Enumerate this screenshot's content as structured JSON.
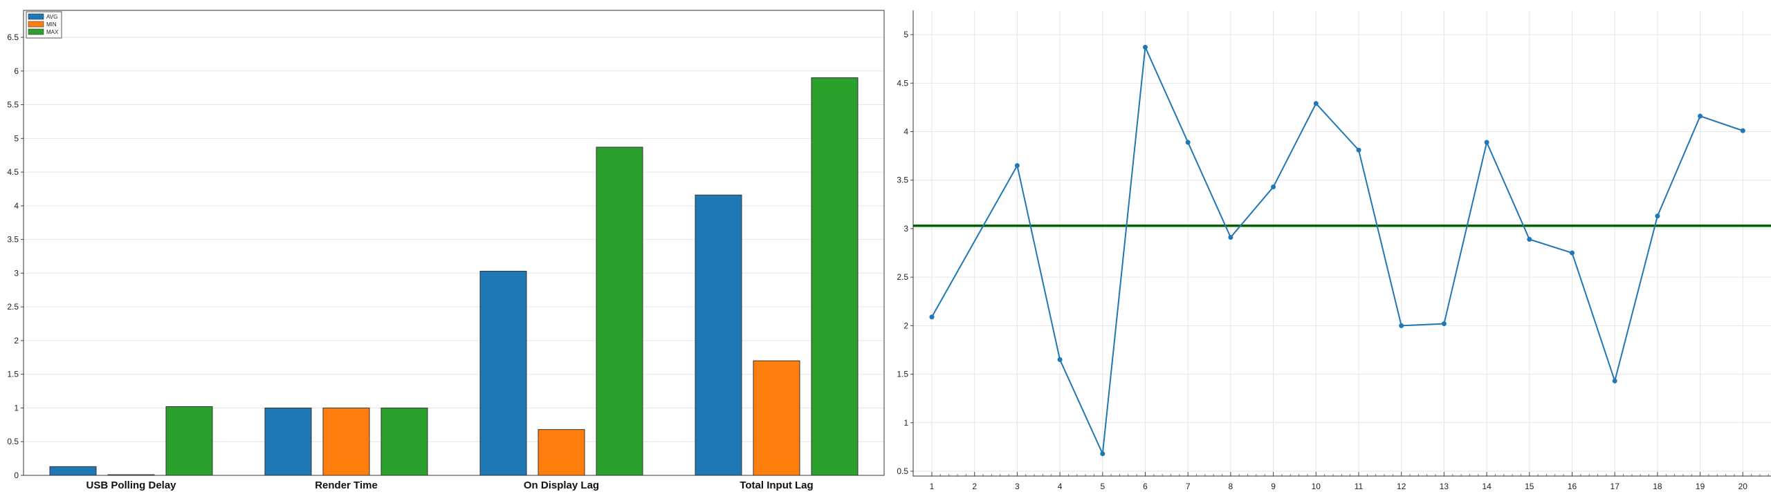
{
  "colors": {
    "avg": "#1f77b4",
    "min": "#ff7f0e",
    "max": "#2ca02c",
    "line": "#1f77b4",
    "avg_line": "#006400",
    "grid": "#e6e6e6"
  },
  "chart_data": [
    {
      "type": "bar",
      "title": "",
      "xlabel": "",
      "ylabel": "",
      "ylim": [
        0,
        6.9
      ],
      "yticks": [
        "0",
        "0.5",
        "1",
        "1.5",
        "2",
        "2.5",
        "3",
        "3.5",
        "4",
        "4.5",
        "5",
        "5.5",
        "6",
        "6.5"
      ],
      "grid": true,
      "legend_position": "top-left",
      "categories": [
        "USB Polling Delay",
        "Render Time",
        "On Display Lag",
        "Total Input Lag"
      ],
      "series": [
        {
          "name": "AVG",
          "color_key": "avg",
          "values": [
            0.13,
            1.0,
            3.03,
            4.16
          ]
        },
        {
          "name": "MIN",
          "color_key": "min",
          "values": [
            0.01,
            1.0,
            0.68,
            1.7
          ]
        },
        {
          "name": "MAX",
          "color_key": "max",
          "values": [
            1.02,
            1.0,
            4.87,
            5.9
          ]
        }
      ]
    },
    {
      "type": "line",
      "title": "",
      "xlabel": "",
      "ylabel": "",
      "ylim": [
        0.45,
        5.25
      ],
      "yticks": [
        "0.5",
        "1",
        "1.5",
        "2",
        "2.5",
        "3",
        "3.5",
        "4",
        "4.5",
        "5"
      ],
      "grid": true,
      "x": [
        1,
        2,
        3,
        4,
        5,
        6,
        7,
        8,
        9,
        10,
        11,
        12,
        13,
        14,
        15,
        16,
        17,
        18,
        19,
        20
      ],
      "xticks": [
        "1",
        "2",
        "3",
        "4",
        "5",
        "6",
        "7",
        "8",
        "9",
        "10",
        "11",
        "12",
        "13",
        "14",
        "15",
        "16",
        "17",
        "18",
        "19",
        "20"
      ],
      "series": [
        {
          "points": [
            [
              1,
              2.09
            ],
            [
              3,
              3.65
            ],
            [
              4,
              1.65
            ],
            [
              5,
              0.68
            ],
            [
              6,
              4.87
            ],
            [
              7,
              3.89
            ],
            [
              8,
              2.91
            ],
            [
              9,
              3.43
            ],
            [
              10,
              4.29
            ],
            [
              11,
              3.81
            ],
            [
              12,
              2.0
            ],
            [
              13,
              2.02
            ],
            [
              14,
              3.89
            ],
            [
              15,
              2.89
            ],
            [
              16,
              2.75
            ],
            [
              17,
              1.43
            ],
            [
              18,
              3.13
            ],
            [
              19,
              4.16
            ],
            [
              20,
              4.01
            ]
          ]
        }
      ],
      "reference_line": {
        "y": 3.03,
        "color_key": "avg_line"
      }
    }
  ]
}
